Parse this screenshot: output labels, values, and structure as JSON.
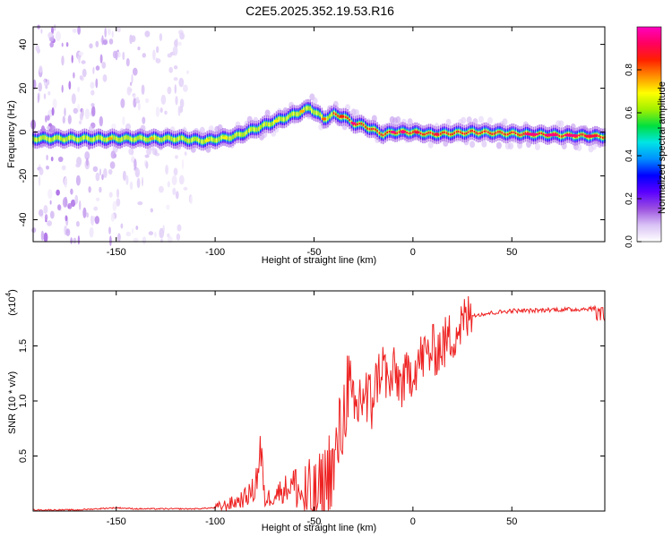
{
  "title": "C2E5.2025.352.19.53.R16",
  "chart_data": [
    {
      "type": "heatmap",
      "title": "C2E5.2025.352.19.53.R16",
      "xlabel": "Height of straight line (km)",
      "ylabel": "Frequency (Hz)",
      "xlim": [
        -192,
        97
      ],
      "ylim": [
        -50,
        48
      ],
      "x_ticks": [
        -150,
        -100,
        -50,
        0,
        50
      ],
      "x_tick_labels": [
        "-150",
        "-100",
        "-50",
        "0",
        "50"
      ],
      "y_ticks": [
        -40,
        -20,
        0,
        20,
        40
      ],
      "y_tick_labels": [
        "-40",
        "-20",
        "0",
        "20",
        "40"
      ],
      "ridge_frequency": {
        "x": [
          -192,
          -150,
          -120,
          -105,
          -90,
          -75,
          -60,
          -52,
          -45,
          -40,
          -35,
          -30,
          -25,
          -20,
          -15,
          -10,
          0,
          10,
          30,
          60,
          97
        ],
        "y": [
          -3,
          -3,
          -3,
          -4,
          -2,
          3,
          8,
          11,
          6,
          8,
          7,
          4,
          3,
          1,
          -1,
          0,
          0,
          -1,
          0,
          -1,
          -2
        ]
      },
      "noise_region_x": [
        -192,
        -112
      ],
      "colorbar": {
        "label": "Normalized spectral amplitude",
        "range": [
          0,
          1
        ],
        "ticks": [
          0.0,
          0.2,
          0.4,
          0.6,
          0.8
        ],
        "tick_labels": [
          "0.0",
          "0.2",
          "0.4",
          "0.6",
          "0.8"
        ],
        "colors": [
          "#ffffff",
          "#d9c2f5",
          "#9b4fe0",
          "#5a00ff",
          "#0000ff",
          "#0090ff",
          "#00e5e5",
          "#00e040",
          "#a0f000",
          "#ffff00",
          "#ff9000",
          "#ff2000",
          "#ff0060",
          "#ff00c0"
        ]
      }
    },
    {
      "type": "line",
      "xlabel": "Height of straight line (km)",
      "ylabel": "SNR (10 * v/v)",
      "y_multiplier_label": "(x10",
      "y_multiplier_exponent": "4",
      "xlim": [
        -192,
        97
      ],
      "ylim": [
        0,
        2.0
      ],
      "x_ticks": [
        -150,
        -100,
        -50,
        0,
        50
      ],
      "x_tick_labels": [
        "-150",
        "-100",
        "-50",
        "0",
        "50"
      ],
      "y_ticks": [
        0.5,
        1.0,
        1.5
      ],
      "y_tick_labels": [
        "0.5",
        "1.0",
        "1.5"
      ],
      "line_color": "#ee2222",
      "series": [
        {
          "name": "SNR",
          "x": [
            -192,
            -170,
            -150,
            -140,
            -120,
            -110,
            -100,
            -95,
            -90,
            -85,
            -80,
            -77,
            -75,
            -70,
            -65,
            -60,
            -55,
            -50,
            -45,
            -42,
            -40,
            -38,
            -35,
            -33,
            -30,
            -27,
            -25,
            -22,
            -20,
            -18,
            -15,
            -12,
            -10,
            -5,
            0,
            5,
            10,
            15,
            20,
            25,
            30,
            40,
            50,
            60,
            70,
            80,
            90,
            97
          ],
          "y": [
            0.01,
            0.01,
            0.03,
            0.02,
            0.02,
            0.02,
            0.03,
            0.05,
            0.08,
            0.12,
            0.2,
            0.55,
            0.1,
            0.15,
            0.2,
            0.25,
            0.1,
            0.06,
            0.2,
            0.4,
            0.35,
            0.6,
            0.85,
            1.2,
            0.8,
            1.0,
            1.1,
            0.9,
            1.1,
            1.2,
            1.35,
            1.1,
            1.25,
            1.15,
            1.3,
            1.4,
            1.45,
            1.5,
            1.6,
            1.7,
            1.78,
            1.8,
            1.82,
            1.82,
            1.83,
            1.83,
            1.84,
            1.84
          ]
        }
      ]
    }
  ]
}
